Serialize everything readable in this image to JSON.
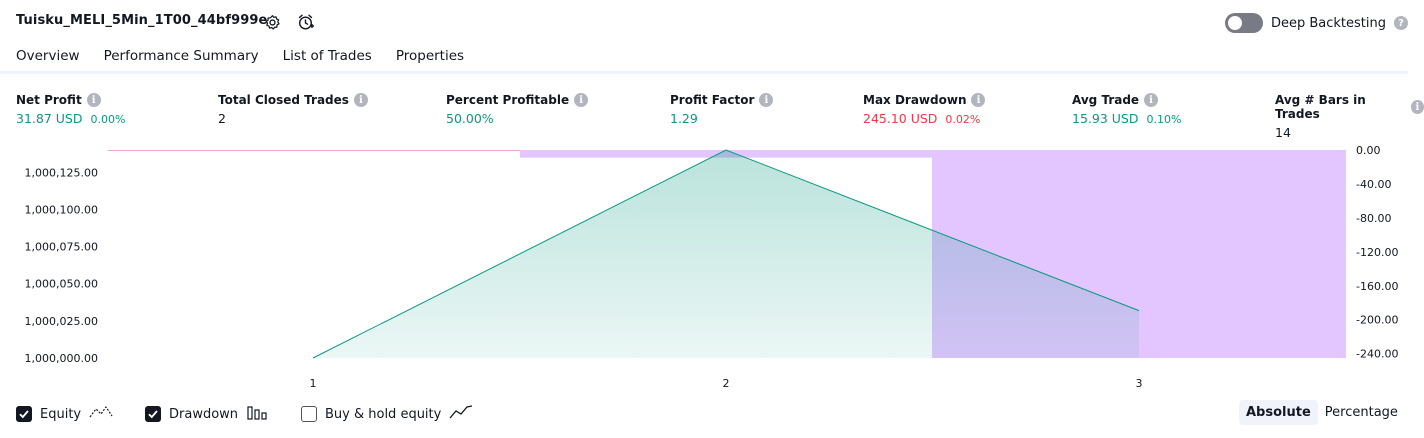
{
  "header": {
    "strategy_name": "Tuisku_MELI_5Min_1T00_44bf999e",
    "settings_icon": "gear-icon",
    "alert_icon": "alarm-clock-add-icon",
    "deep_backtesting_label": "Deep Backtesting",
    "deep_backtesting_on": false,
    "help_icon": "question-icon"
  },
  "tabs": [
    {
      "label": "Overview",
      "active": true
    },
    {
      "label": "Performance Summary",
      "active": false
    },
    {
      "label": "List of Trades",
      "active": false
    },
    {
      "label": "Properties",
      "active": false
    }
  ],
  "stats": [
    {
      "label": "Net Profit",
      "value": "31.87 USD",
      "pct": "0.00%",
      "color": "#089981"
    },
    {
      "label": "Total Closed Trades",
      "value": "2",
      "pct": "",
      "color": "#131722"
    },
    {
      "label": "Percent Profitable",
      "value": "50.00%",
      "pct": "",
      "color": "#089981"
    },
    {
      "label": "Profit Factor",
      "value": "1.29",
      "pct": "",
      "color": "#089981"
    },
    {
      "label": "Max Drawdown",
      "value": "245.10 USD",
      "pct": "0.02%",
      "color": "#f23645"
    },
    {
      "label": "Avg Trade",
      "value": "15.93 USD",
      "pct": "0.10%",
      "color": "#089981"
    },
    {
      "label": "Avg # Bars in Trades",
      "value": "14",
      "pct": "",
      "color": "#131722"
    }
  ],
  "chart_data": {
    "type": "area",
    "x": [
      1,
      2,
      3
    ],
    "x_tick_labels": [
      "1",
      "2",
      "3"
    ],
    "equity_series": {
      "values": [
        1000000.0,
        1000140.0,
        1000031.87
      ],
      "color": "#089981"
    },
    "drawdown_series": {
      "values": [
        0,
        -9,
        -245.1
      ],
      "color": "#e1c3ff"
    },
    "left_axis": {
      "ticks": [
        "1,000,125.00",
        "1,000,100.00",
        "1,000,075.00",
        "1,000,050.00",
        "1,000,025.00",
        "1,000,000.00"
      ],
      "values": [
        1000125,
        1000100,
        1000075,
        1000050,
        1000025,
        1000000
      ]
    },
    "right_axis": {
      "ticks": [
        "0.00",
        "-40.00",
        "-80.00",
        "-120.00",
        "-160.00",
        "-200.00",
        "-240.00"
      ],
      "values": [
        0,
        -40,
        -80,
        -120,
        -160,
        -200,
        -240
      ]
    },
    "ylim_left": [
      1000000,
      1000140
    ],
    "ylim_right": [
      -245.1,
      0
    ]
  },
  "footer": {
    "legend": [
      {
        "label": "Equity",
        "checked": true,
        "icon": "equity-line-icon"
      },
      {
        "label": "Drawdown",
        "checked": true,
        "icon": "drawdown-bars-icon"
      },
      {
        "label": "Buy & hold equity",
        "checked": false,
        "icon": "buy-hold-line-icon"
      }
    ],
    "modes": [
      {
        "label": "Absolute",
        "selected": true
      },
      {
        "label": "Percentage",
        "selected": false
      }
    ]
  }
}
